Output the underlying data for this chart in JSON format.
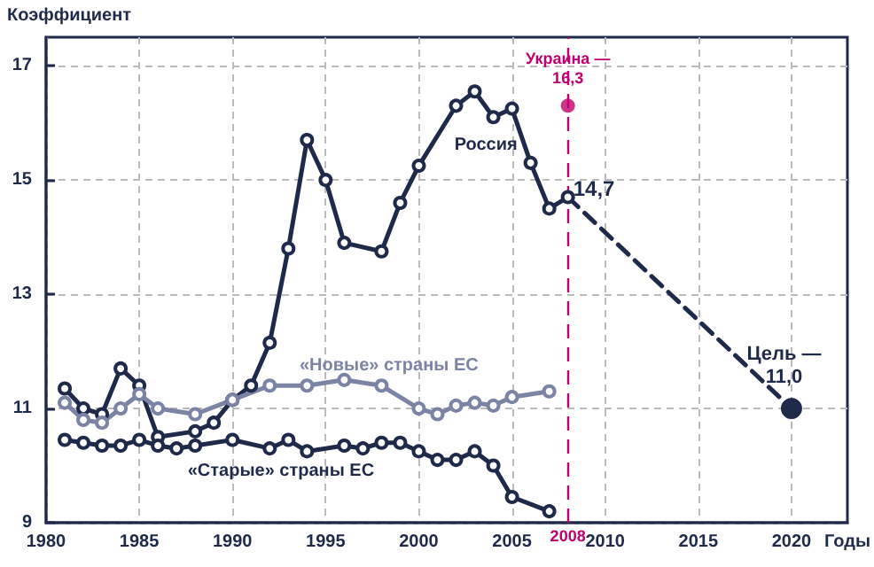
{
  "chart_data": {
    "type": "line",
    "ylabel": "Коэффициент",
    "xlabel": "Годы",
    "xlim": [
      1980,
      2023
    ],
    "xticks": [
      1980,
      1985,
      1990,
      1995,
      2000,
      2005,
      2010,
      2015,
      2020
    ],
    "ylim": [
      9,
      17.5
    ],
    "yticks": [
      9,
      11,
      13,
      15,
      17
    ],
    "grid": true,
    "legend": false,
    "marker": "circle",
    "series": [
      {
        "name": "Россия",
        "color": "#1f2a4a",
        "x": [
          1981,
          1982,
          1983,
          1984,
          1985,
          1986,
          1988,
          1989,
          1990,
          1991,
          1992,
          1993,
          1994,
          1995,
          1996,
          1998,
          1999,
          2000,
          2002,
          2003,
          2004,
          2005,
          2006,
          2007,
          2008
        ],
        "values": [
          11.35,
          11.0,
          10.9,
          11.7,
          11.4,
          10.5,
          10.6,
          10.75,
          11.15,
          11.4,
          12.15,
          13.8,
          15.7,
          15.0,
          13.9,
          13.75,
          14.6,
          15.25,
          16.3,
          16.55,
          16.1,
          16.25,
          15.3,
          14.5,
          14.7
        ]
      },
      {
        "name": "«Новые» страны ЕС",
        "color": "#7c84a6",
        "x": [
          1981,
          1982,
          1983,
          1984,
          1985,
          1986,
          1988,
          1990,
          1992,
          1994,
          1996,
          1998,
          2000,
          2001,
          2002,
          2003,
          2004,
          2005,
          2007
        ],
        "values": [
          11.1,
          10.8,
          10.75,
          11.0,
          11.25,
          11.0,
          10.9,
          11.15,
          11.4,
          11.4,
          11.5,
          11.4,
          11.0,
          10.9,
          11.05,
          11.1,
          11.05,
          11.2,
          11.3
        ]
      },
      {
        "name": "«Старые» страны ЕС",
        "color": "#1f2a4a",
        "x": [
          1981,
          1982,
          1983,
          1984,
          1985,
          1986,
          1987,
          1988,
          1990,
          1992,
          1993,
          1994,
          1996,
          1997,
          1998,
          1999,
          2000,
          2001,
          2002,
          2003,
          2004,
          2005,
          2007
        ],
        "values": [
          10.45,
          10.4,
          10.35,
          10.35,
          10.45,
          10.35,
          10.3,
          10.35,
          10.45,
          10.3,
          10.45,
          10.25,
          10.35,
          10.3,
          10.4,
          10.4,
          10.25,
          10.1,
          10.1,
          10.25,
          10.0,
          9.45,
          9.2
        ]
      },
      {
        "type": "line",
        "line_style": "dashed",
        "color": "#1f2a4a",
        "x": [
          2008,
          2020
        ],
        "values": [
          14.7,
          11.0
        ]
      },
      {
        "type": "scatter",
        "color": "#c0006e",
        "x": [
          2008
        ],
        "values": [
          16.3
        ]
      }
    ],
    "ref_lines": [
      {
        "axis": "x",
        "value": 2008,
        "label": "2008",
        "color": "#c0006e",
        "line_style": "dashed"
      }
    ],
    "annotations": [
      "Украина —\n16,3",
      "14,7",
      "Цель —\n11,0"
    ]
  }
}
